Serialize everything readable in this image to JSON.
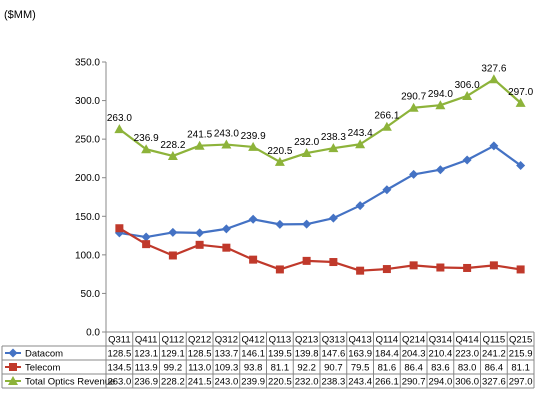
{
  "chart_data": {
    "type": "line",
    "unit_label": "($MM)",
    "categories": [
      "Q311",
      "Q411",
      "Q112",
      "Q212",
      "Q312",
      "Q412",
      "Q113",
      "Q213",
      "Q313",
      "Q413",
      "Q114",
      "Q214",
      "Q314",
      "Q414",
      "Q115",
      "Q215"
    ],
    "ylim": [
      0,
      350
    ],
    "yticks": [
      "0.0",
      "50.0",
      "100.0",
      "150.0",
      "200.0",
      "250.0",
      "300.0",
      "350.0"
    ],
    "grid": false,
    "legend": "data-table",
    "series": [
      {
        "name": "Datacom",
        "color": "#4472C4",
        "marker": "diamond",
        "values": [
          128.5,
          123.1,
          129.1,
          128.5,
          133.7,
          146.1,
          139.5,
          139.8,
          147.6,
          163.9,
          184.4,
          204.3,
          210.4,
          223.0,
          241.2,
          215.9
        ],
        "table": [
          "128.5",
          "123.1",
          "129.1",
          "128.5",
          "133.7",
          "146.1",
          "139.5",
          "139.8",
          "147.6",
          "163.9",
          "184.4",
          "204.3",
          "210.4",
          "223.0",
          "241.2",
          "215.9"
        ]
      },
      {
        "name": "Telecom",
        "color": "#C0392B",
        "marker": "square",
        "values": [
          134.5,
          113.9,
          99.2,
          113.0,
          109.3,
          93.8,
          81.1,
          92.2,
          90.7,
          79.5,
          81.6,
          86.4,
          83.6,
          83.0,
          86.4,
          81.1
        ],
        "table": [
          "134.5",
          "113.9",
          "99.2",
          "113.0",
          "109.3",
          "93.8",
          "81.1",
          "92.2",
          "90.7",
          "79.5",
          "81.6",
          "86.4",
          "83.6",
          "83.0",
          "86.4",
          "81.1"
        ]
      },
      {
        "name": "Total Optics Revenue",
        "color": "#8DB33A",
        "marker": "triangle",
        "values": [
          263.0,
          236.9,
          228.2,
          241.5,
          243.0,
          239.9,
          220.5,
          232.0,
          238.3,
          243.4,
          266.1,
          290.7,
          294.0,
          306.0,
          327.6,
          297.0
        ],
        "table": [
          "263.0",
          "236.9",
          "228.2",
          "241.5",
          "243.0",
          "239.9",
          "220.5",
          "232.0",
          "238.3",
          "243.4",
          "266.1",
          "290.7",
          "294.0",
          "306.0",
          "327.6",
          "297.0"
        ]
      }
    ],
    "data_labels_series": 2
  }
}
